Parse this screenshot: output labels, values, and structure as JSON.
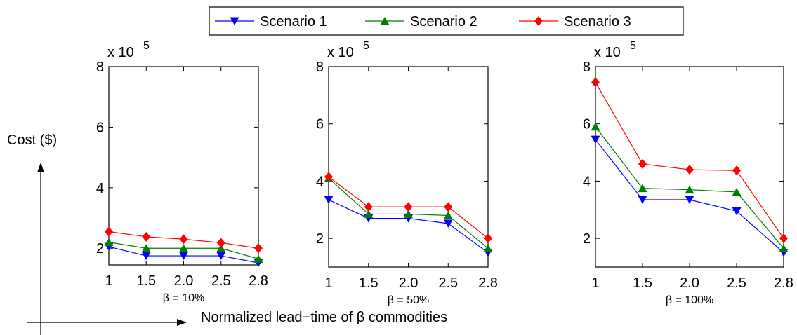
{
  "legend": {
    "position": "top-center",
    "entries": [
      {
        "name": "Scenario 1",
        "color": "#0000ff",
        "marker": "triangle-down"
      },
      {
        "name": "Scenario 2",
        "color": "#007f00",
        "marker": "triangle-up"
      },
      {
        "name": "Scenario 3",
        "color": "#ff0000",
        "marker": "diamond"
      }
    ]
  },
  "ylabel": "Cost ($)",
  "xlabel": "Normalized lead−time of β commodities",
  "scale_label": "x 10",
  "scale_exponent": "5",
  "chart_data": [
    {
      "type": "line",
      "subtitle": "β = 10%",
      "categories": [
        "1",
        "1.5",
        "2.0",
        "2.5",
        "2.8"
      ],
      "ylim": [
        1.45,
        8
      ],
      "yticks": [
        "2",
        "4",
        "6",
        "8"
      ],
      "series": [
        {
          "name": "Scenario 1",
          "values": [
            2.05,
            1.75,
            1.75,
            1.75,
            1.52
          ]
        },
        {
          "name": "Scenario 2",
          "values": [
            2.2,
            2.0,
            2.0,
            2.0,
            1.65
          ]
        },
        {
          "name": "Scenario 3",
          "values": [
            2.55,
            2.38,
            2.3,
            2.18,
            2.0
          ]
        }
      ]
    },
    {
      "type": "line",
      "subtitle": "β = 50%",
      "categories": [
        "1",
        "1.5",
        "2.0",
        "2.5",
        "2.8"
      ],
      "ylim": [
        1.0,
        8
      ],
      "yticks": [
        "2",
        "4",
        "6",
        "8"
      ],
      "series": [
        {
          "name": "Scenario 1",
          "values": [
            3.35,
            2.7,
            2.7,
            2.52,
            1.5
          ]
        },
        {
          "name": "Scenario 2",
          "values": [
            4.1,
            2.85,
            2.85,
            2.8,
            1.65
          ]
        },
        {
          "name": "Scenario 3",
          "values": [
            4.15,
            3.1,
            3.1,
            3.1,
            2.0
          ]
        }
      ]
    },
    {
      "type": "line",
      "subtitle": "β = 100%",
      "categories": [
        "1",
        "1.5",
        "2.0",
        "2.5",
        "2.8"
      ],
      "ylim": [
        1.0,
        8
      ],
      "yticks": [
        "2",
        "4",
        "6",
        "8"
      ],
      "series": [
        {
          "name": "Scenario 1",
          "values": [
            5.45,
            3.35,
            3.35,
            2.95,
            1.5
          ]
        },
        {
          "name": "Scenario 2",
          "values": [
            5.9,
            3.75,
            3.7,
            3.62,
            1.65
          ]
        },
        {
          "name": "Scenario 3",
          "values": [
            7.45,
            4.6,
            4.4,
            4.37,
            2.0
          ]
        }
      ]
    }
  ]
}
